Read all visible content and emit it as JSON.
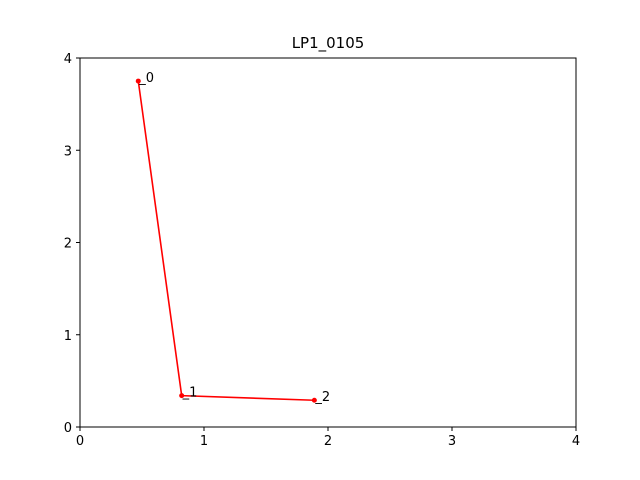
{
  "chart_data": {
    "type": "line",
    "title": "LP1_0105",
    "xlabel": "",
    "ylabel": "",
    "xlim": [
      0,
      4
    ],
    "ylim": [
      0,
      4
    ],
    "x_ticks": [
      "0",
      "1",
      "2",
      "3",
      "4"
    ],
    "y_ticks": [
      "0",
      "1",
      "2",
      "3",
      "4"
    ],
    "grid": false,
    "legend": "none",
    "series": [
      {
        "color": "#ff0000",
        "marker": "circle",
        "points": [
          {
            "x": 0.47,
            "y": 3.75,
            "label": "_0"
          },
          {
            "x": 0.82,
            "y": 0.34,
            "label": "_1"
          },
          {
            "x": 1.89,
            "y": 0.29,
            "label": "_2"
          }
        ]
      }
    ]
  }
}
